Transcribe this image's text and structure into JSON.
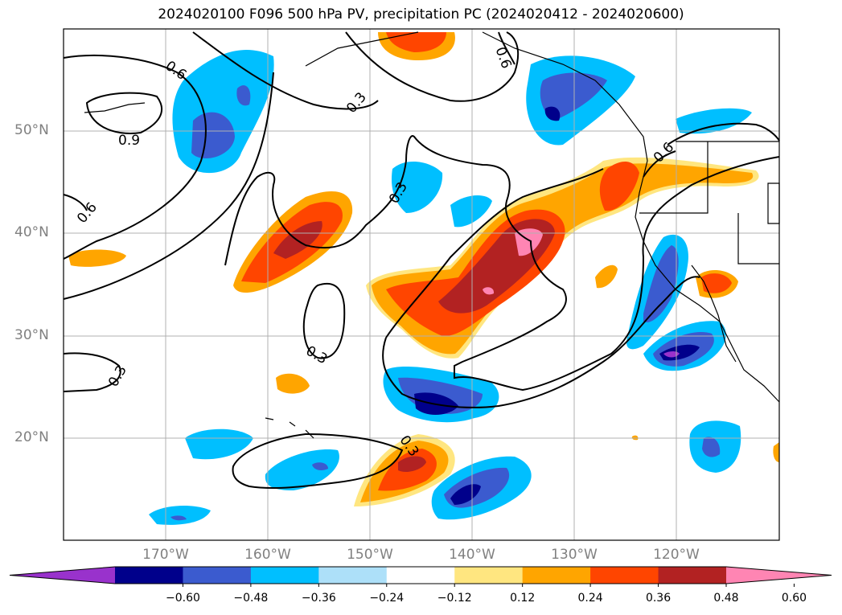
{
  "title": "2024020100 F096 500 hPa PV, precipitation PC (2024020412 - 2024020600)",
  "lat_labels": [
    "50°N",
    "40°N",
    "30°N",
    "20°N"
  ],
  "lon_labels": [
    "170°W",
    "160°W",
    "150°W",
    "140°W",
    "130°W",
    "120°W"
  ],
  "contour_labels": [
    "0.6",
    "0.9",
    "0.3",
    "0.6",
    "0.6",
    "0.3",
    "0.3",
    "0.3",
    "0.3",
    "0.6",
    "0.3"
  ],
  "colorbar": {
    "ticks": [
      "−0.60",
      "−0.48",
      "−0.36",
      "−0.24",
      "−0.12",
      "0.12",
      "0.24",
      "0.36",
      "0.48",
      "0.60"
    ],
    "colors": [
      "#9932CC",
      "#00008B",
      "#3B5BCF",
      "#00BFFF",
      "#ADE0F9",
      "#FFFFFF",
      "#FFE680",
      "#FFA500",
      "#FF4500",
      "#B22222",
      "#FF85B3"
    ]
  }
}
